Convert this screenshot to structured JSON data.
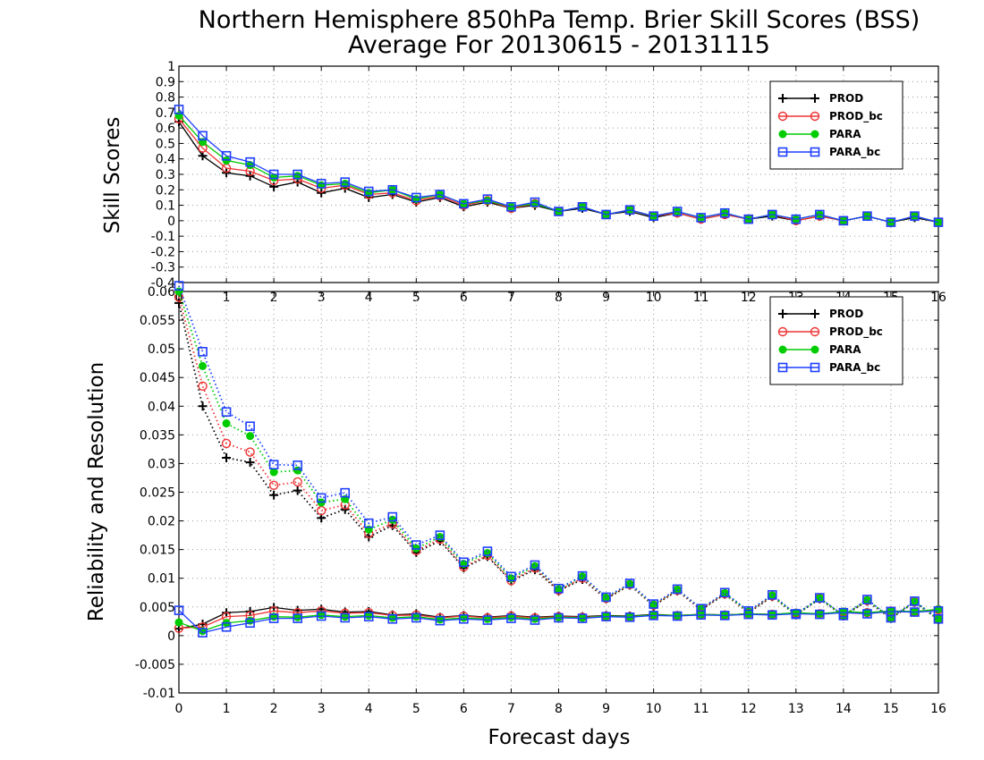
{
  "title_line1": "Northern Hemisphere 850hPa Temp. Brier Skill Scores (BSS)",
  "title_line2": "Average For 20130615 - 20131115",
  "colors": {
    "PROD": "#000000",
    "PROD_bc": "#ee3333",
    "PARA": "#00cc00",
    "PARA_bc": "#1f3fff"
  },
  "chart_data": [
    {
      "type": "line",
      "ylabel": "Skill Scores",
      "xlabel": "",
      "xlim": [
        0,
        16
      ],
      "ylim": [
        -0.4,
        1
      ],
      "xticks": [
        0,
        1,
        2,
        3,
        4,
        5,
        6,
        7,
        8,
        9,
        10,
        11,
        12,
        13,
        14,
        15,
        16
      ],
      "yticks": [
        -0.4,
        -0.3,
        -0.2,
        -0.1,
        0,
        0.1,
        0.2,
        0.3,
        0.4,
        0.5,
        0.6,
        0.7,
        0.8,
        0.9,
        1
      ],
      "ytick_labels": [
        "-0.4",
        "-0.3",
        "-0.2",
        "-0.1",
        "0",
        "0.1",
        "0.2",
        "0.3",
        "0.4",
        "0.5",
        "0.6",
        "0.7",
        "0.8",
        "0.9",
        "1"
      ],
      "grid": true,
      "legend_position": "top-right",
      "x": [
        0,
        0.5,
        1,
        1.5,
        2,
        2.5,
        3,
        3.5,
        4,
        4.5,
        5,
        5.5,
        6,
        6.5,
        7,
        7.5,
        8,
        8.5,
        9,
        9.5,
        10,
        10.5,
        11,
        11.5,
        12,
        12.5,
        13,
        13.5,
        14,
        14.5,
        15,
        15.5,
        16
      ],
      "series": [
        {
          "name": "PROD",
          "marker": "plus",
          "line": "solid",
          "values": [
            0.64,
            0.42,
            0.31,
            0.29,
            0.22,
            0.25,
            0.18,
            0.21,
            0.15,
            0.17,
            0.12,
            0.15,
            0.09,
            0.12,
            0.08,
            0.1,
            0.06,
            0.08,
            0.04,
            0.06,
            0.02,
            0.05,
            0.01,
            0.04,
            0.01,
            0.03,
            0.0,
            0.03,
            0.0,
            0.03,
            -0.01,
            0.02,
            -0.01
          ]
        },
        {
          "name": "PROD_bc",
          "marker": "circle",
          "line": "solid",
          "values": [
            0.66,
            0.47,
            0.34,
            0.32,
            0.26,
            0.27,
            0.21,
            0.23,
            0.17,
            0.18,
            0.13,
            0.16,
            0.1,
            0.13,
            0.08,
            0.11,
            0.06,
            0.09,
            0.04,
            0.07,
            0.03,
            0.05,
            0.01,
            0.04,
            0.01,
            0.04,
            0.0,
            0.03,
            0.0,
            0.03,
            -0.01,
            0.03,
            -0.01
          ]
        },
        {
          "name": "PARA",
          "marker": "dot",
          "line": "solid",
          "values": [
            0.68,
            0.51,
            0.39,
            0.36,
            0.28,
            0.29,
            0.23,
            0.24,
            0.18,
            0.2,
            0.14,
            0.17,
            0.11,
            0.13,
            0.09,
            0.11,
            0.06,
            0.09,
            0.04,
            0.07,
            0.03,
            0.06,
            0.02,
            0.05,
            0.01,
            0.04,
            0.01,
            0.04,
            0.0,
            0.03,
            -0.01,
            0.03,
            -0.01
          ]
        },
        {
          "name": "PARA_bc",
          "marker": "square",
          "line": "solid",
          "values": [
            0.72,
            0.55,
            0.42,
            0.38,
            0.3,
            0.3,
            0.24,
            0.25,
            0.19,
            0.2,
            0.15,
            0.17,
            0.11,
            0.14,
            0.09,
            0.12,
            0.06,
            0.09,
            0.04,
            0.07,
            0.03,
            0.06,
            0.02,
            0.05,
            0.01,
            0.04,
            0.01,
            0.04,
            0.0,
            0.03,
            -0.01,
            0.03,
            -0.01
          ]
        }
      ],
      "legend": [
        "PROD",
        "PROD_bc",
        "PARA",
        "PARA_bc"
      ]
    },
    {
      "type": "line",
      "ylabel": "Reliability and Resolution",
      "xlabel": "Forecast days",
      "xlim": [
        0,
        16
      ],
      "ylim": [
        -0.01,
        0.06
      ],
      "xticks": [
        0,
        1,
        2,
        3,
        4,
        5,
        6,
        7,
        8,
        9,
        10,
        11,
        12,
        13,
        14,
        15,
        16
      ],
      "yticks": [
        -0.01,
        -0.005,
        0,
        0.005,
        0.01,
        0.015,
        0.02,
        0.025,
        0.03,
        0.035,
        0.04,
        0.045,
        0.05,
        0.055,
        0.06
      ],
      "ytick_labels": [
        "-0.01",
        "-0.005",
        "0",
        "0.005",
        "0.01",
        "0.015",
        "0.02",
        "0.025",
        "0.03",
        "0.035",
        "0.04",
        "0.045",
        "0.05",
        "0.055",
        "0.06"
      ],
      "grid": true,
      "legend_position": "top-right",
      "x": [
        0,
        0.5,
        1,
        1.5,
        2,
        2.5,
        3,
        3.5,
        4,
        4.5,
        5,
        5.5,
        6,
        6.5,
        7,
        7.5,
        8,
        8.5,
        9,
        9.5,
        10,
        10.5,
        11,
        11.5,
        12,
        12.5,
        13,
        13.5,
        14,
        14.5,
        15,
        15.5,
        16
      ],
      "series": [
        {
          "name": "PROD",
          "group": "resolution",
          "marker": "plus",
          "line": "dotted",
          "values": [
            0.058,
            0.04,
            0.031,
            0.0302,
            0.0245,
            0.0253,
            0.0205,
            0.022,
            0.0172,
            0.0192,
            0.0145,
            0.0165,
            0.0118,
            0.0138,
            0.0095,
            0.0115,
            0.0078,
            0.0098,
            0.0064,
            0.0088,
            0.0052,
            0.0078,
            0.0045,
            0.0072,
            0.004,
            0.0068,
            0.0036,
            0.0064,
            0.0034,
            0.006,
            0.003,
            0.0058,
            0.0028
          ]
        },
        {
          "name": "PROD_bc",
          "group": "resolution",
          "marker": "circle",
          "line": "dotted",
          "values": [
            0.059,
            0.0435,
            0.0335,
            0.032,
            0.0262,
            0.0268,
            0.0218,
            0.0228,
            0.0178,
            0.0195,
            0.0148,
            0.0168,
            0.012,
            0.014,
            0.0096,
            0.0118,
            0.0079,
            0.01,
            0.0065,
            0.0089,
            0.0053,
            0.0079,
            0.0046,
            0.0073,
            0.0041,
            0.0069,
            0.0037,
            0.0065,
            0.0035,
            0.0061,
            0.0031,
            0.0059,
            0.0029
          ]
        },
        {
          "name": "PARA",
          "group": "resolution",
          "marker": "dot",
          "line": "dotted",
          "values": [
            0.06,
            0.047,
            0.037,
            0.0348,
            0.0285,
            0.0288,
            0.0232,
            0.0238,
            0.0185,
            0.0202,
            0.0152,
            0.0172,
            0.0125,
            0.0144,
            0.01,
            0.0121,
            0.0081,
            0.0103,
            0.0066,
            0.009,
            0.0054,
            0.008,
            0.0047,
            0.0074,
            0.0042,
            0.007,
            0.0037,
            0.0065,
            0.0035,
            0.0062,
            0.0031,
            0.0059,
            0.0029
          ]
        },
        {
          "name": "PARA_bc",
          "group": "resolution",
          "marker": "square",
          "line": "dotted",
          "values": [
            0.061,
            0.0495,
            0.039,
            0.0365,
            0.0298,
            0.0297,
            0.024,
            0.0249,
            0.0196,
            0.0207,
            0.0158,
            0.0175,
            0.0128,
            0.0147,
            0.0103,
            0.0123,
            0.0082,
            0.0104,
            0.0067,
            0.0091,
            0.0055,
            0.0081,
            0.0047,
            0.0075,
            0.0043,
            0.0071,
            0.0037,
            0.0066,
            0.0035,
            0.0063,
            0.0031,
            0.006,
            0.0029
          ]
        },
        {
          "name": "PROD",
          "group": "reliability",
          "marker": "plus",
          "line": "solid",
          "values": [
            0.0012,
            0.002,
            0.004,
            0.0042,
            0.0049,
            0.0044,
            0.0046,
            0.0041,
            0.0042,
            0.0036,
            0.0038,
            0.0032,
            0.0035,
            0.0032,
            0.0035,
            0.0032,
            0.0034,
            0.0033,
            0.0035,
            0.0034,
            0.0037,
            0.0035,
            0.0037,
            0.0036,
            0.0038,
            0.0037,
            0.0039,
            0.0038,
            0.0041,
            0.0039,
            0.0042,
            0.0041,
            0.0044
          ]
        },
        {
          "name": "PROD_bc",
          "group": "reliability",
          "marker": "circle",
          "line": "solid",
          "values": [
            0.0013,
            0.0015,
            0.0033,
            0.0035,
            0.0043,
            0.004,
            0.0043,
            0.0039,
            0.004,
            0.0035,
            0.0036,
            0.0031,
            0.0034,
            0.0031,
            0.0034,
            0.0031,
            0.0033,
            0.0032,
            0.0034,
            0.0033,
            0.0036,
            0.0035,
            0.0037,
            0.0036,
            0.0038,
            0.0037,
            0.0039,
            0.0038,
            0.0041,
            0.004,
            0.0043,
            0.0041,
            0.0045
          ]
        },
        {
          "name": "PARA",
          "group": "reliability",
          "marker": "dot",
          "line": "solid",
          "values": [
            0.0023,
            0.0008,
            0.0022,
            0.0026,
            0.0033,
            0.0032,
            0.0036,
            0.0033,
            0.0035,
            0.0031,
            0.0033,
            0.0028,
            0.0031,
            0.0029,
            0.0032,
            0.0029,
            0.0032,
            0.0031,
            0.0034,
            0.0033,
            0.0036,
            0.0035,
            0.0037,
            0.0036,
            0.0038,
            0.0037,
            0.004,
            0.0038,
            0.0042,
            0.004,
            0.0043,
            0.0042,
            0.0046
          ]
        },
        {
          "name": "PARA_bc",
          "group": "reliability",
          "marker": "square",
          "line": "solid",
          "values": [
            0.0044,
            0.0005,
            0.0015,
            0.0022,
            0.003,
            0.003,
            0.0034,
            0.0031,
            0.0033,
            0.0029,
            0.0031,
            0.0026,
            0.0029,
            0.0027,
            0.003,
            0.0027,
            0.0031,
            0.003,
            0.0033,
            0.0032,
            0.0035,
            0.0034,
            0.0036,
            0.0035,
            0.0037,
            0.0036,
            0.0038,
            0.0037,
            0.004,
            0.0038,
            0.0042,
            0.0041,
            0.0043
          ]
        }
      ],
      "legend": [
        "PROD",
        "PROD_bc",
        "PARA",
        "PARA_bc"
      ]
    }
  ]
}
